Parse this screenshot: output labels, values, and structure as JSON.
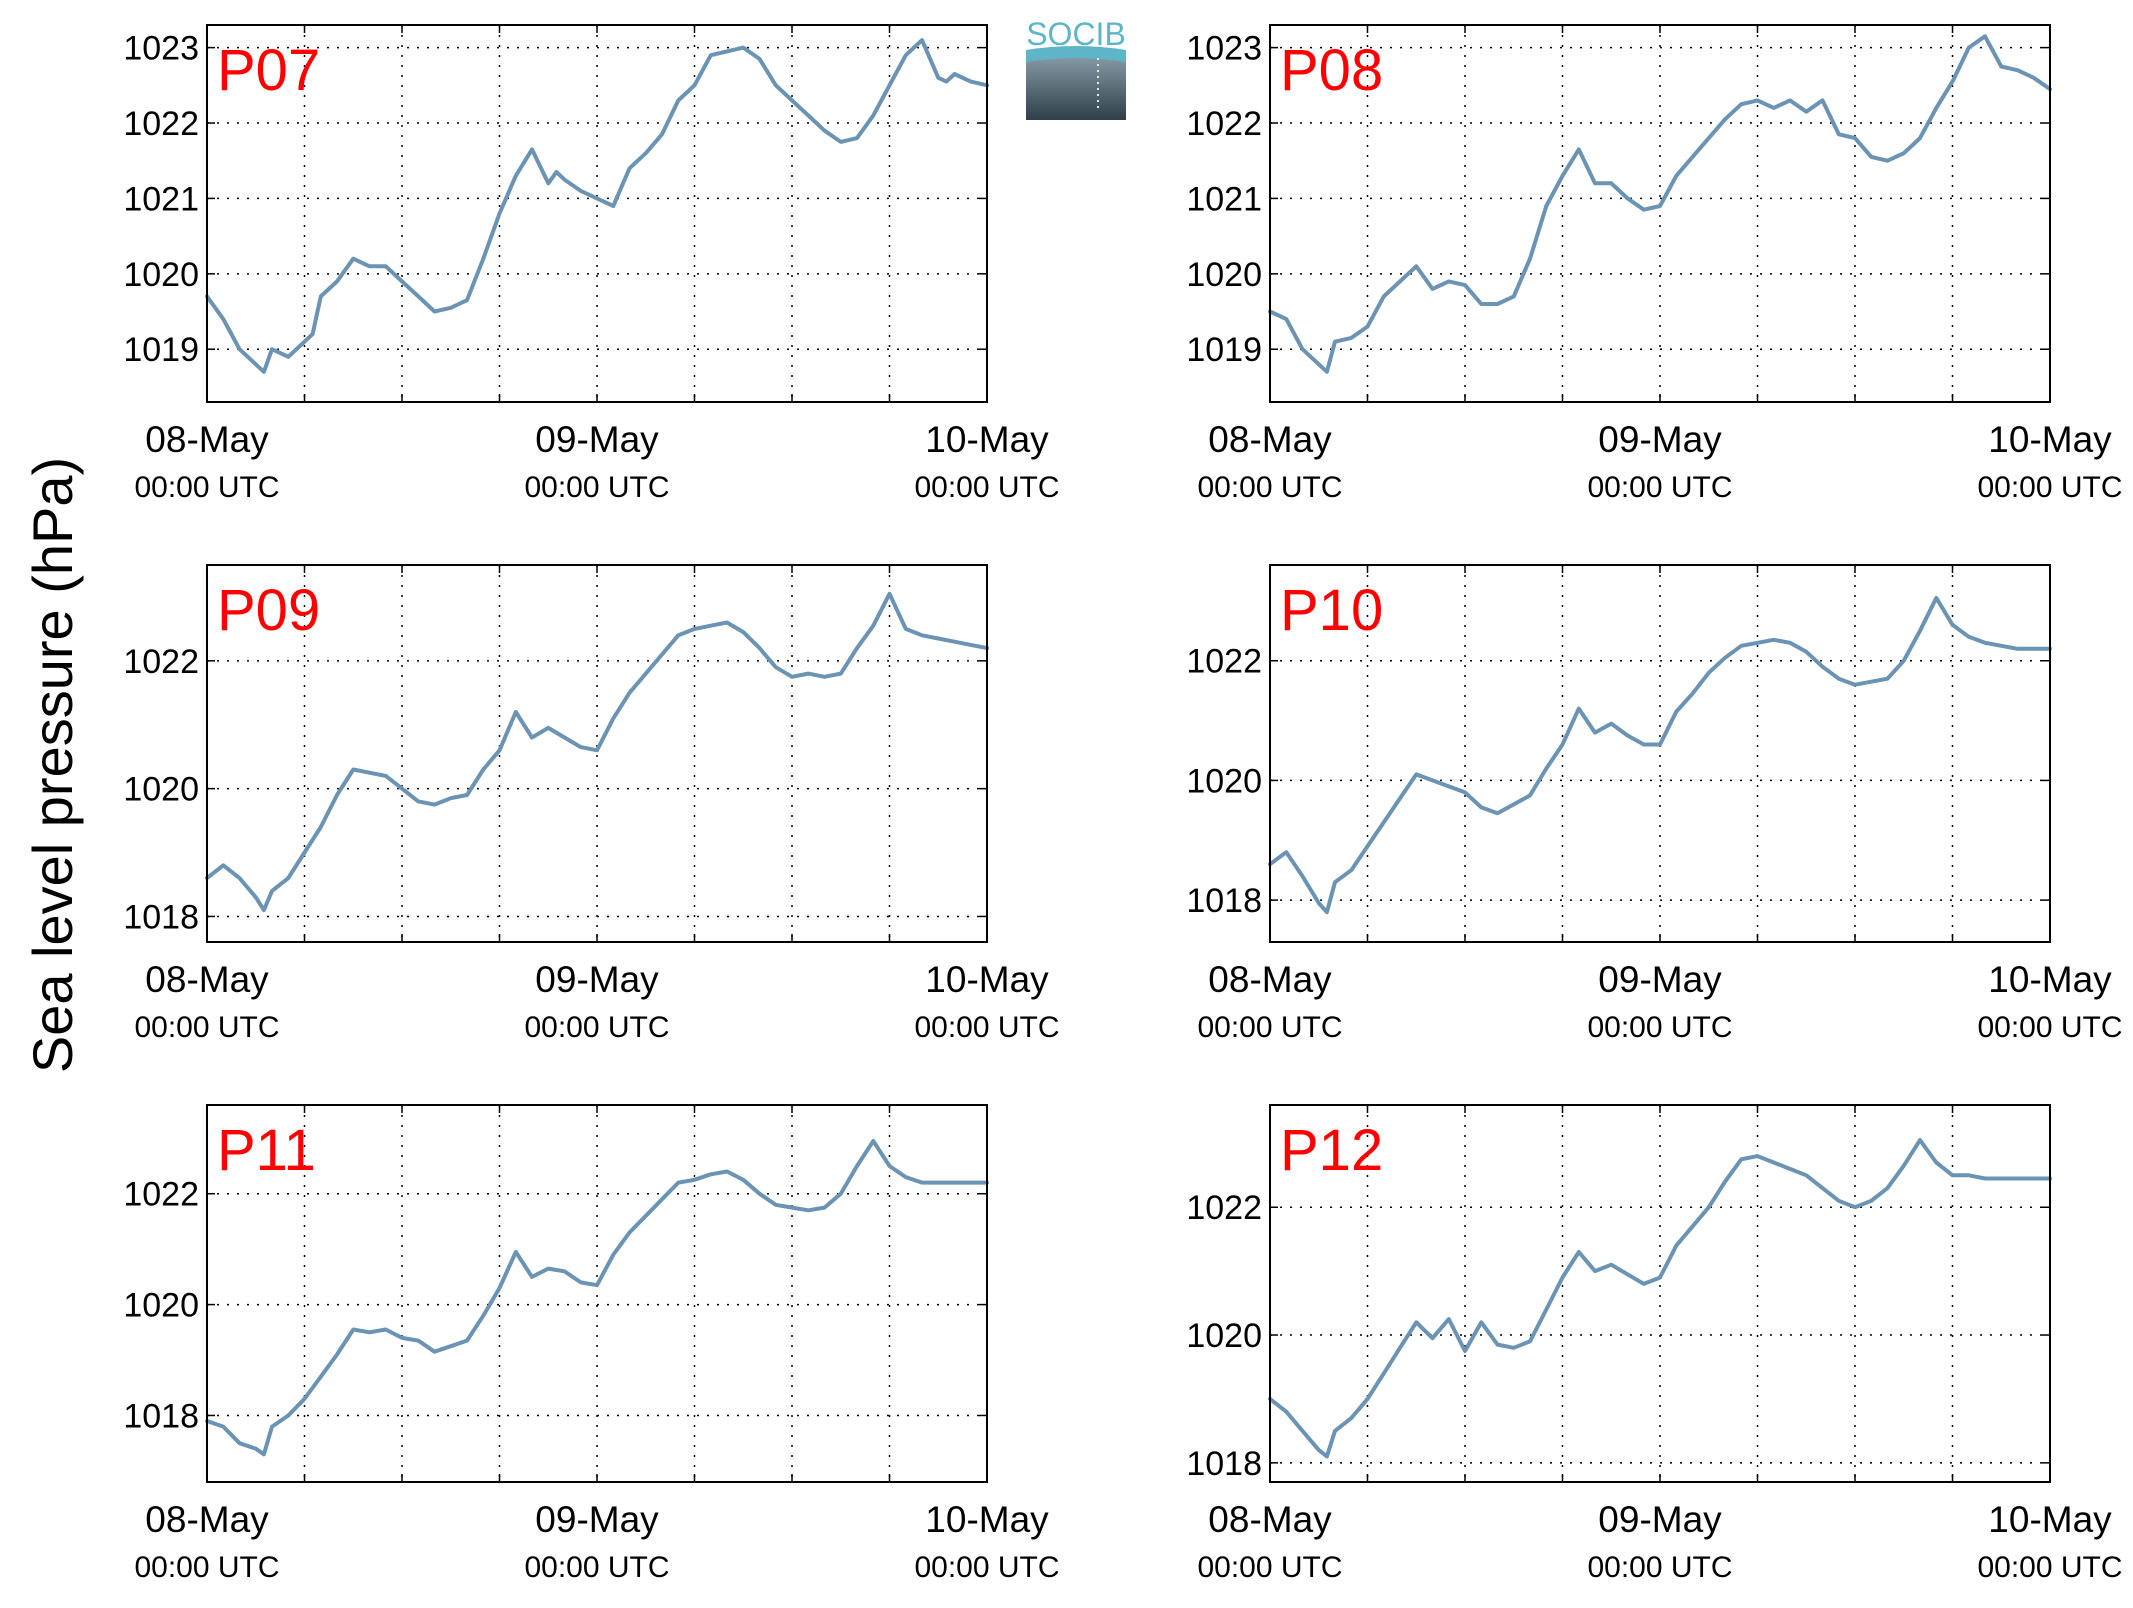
{
  "figure": {
    "ylabel": "Sea level pressure (hPa)",
    "logo_text": "SOCIB",
    "line_color": "#6a93b4",
    "label_color": "#ff0000",
    "x_ticks": [
      {
        "date": "08-May",
        "time": "00:00 UTC"
      },
      {
        "date": "09-May",
        "time": "00:00 UTC"
      },
      {
        "date": "10-May",
        "time": "00:00 UTC"
      }
    ]
  },
  "chart_data": [
    {
      "type": "line",
      "label": "P07",
      "x_unit": "hours since 08-May 00:00 UTC",
      "xlim": [
        0,
        48
      ],
      "ylim": [
        1018.3,
        1023.3
      ],
      "yticks": [
        1019,
        1020,
        1021,
        1022,
        1023
      ],
      "grid": true,
      "x": [
        0,
        1,
        2,
        3,
        3.5,
        4,
        5,
        6,
        6.5,
        7,
        8,
        9,
        10,
        11,
        12,
        13,
        14,
        15,
        16,
        17,
        18,
        19,
        20,
        21,
        21.5,
        22,
        23,
        24,
        25,
        26,
        27,
        28,
        29,
        30,
        31,
        32,
        33,
        34,
        35,
        36,
        37,
        38,
        39,
        40,
        41,
        42,
        43,
        44,
        45,
        45.5,
        46,
        47,
        48
      ],
      "y": [
        1019.7,
        1019.4,
        1019.0,
        1018.8,
        1018.7,
        1019.0,
        1018.9,
        1019.1,
        1019.2,
        1019.7,
        1019.9,
        1020.2,
        1020.1,
        1020.1,
        1019.9,
        1019.7,
        1019.5,
        1019.55,
        1019.65,
        1020.2,
        1020.8,
        1021.3,
        1021.65,
        1021.2,
        1021.35,
        1021.25,
        1021.1,
        1021.0,
        1020.9,
        1021.4,
        1021.6,
        1021.85,
        1022.3,
        1022.5,
        1022.9,
        1022.95,
        1023.0,
        1022.85,
        1022.5,
        1022.3,
        1022.1,
        1021.9,
        1021.75,
        1021.8,
        1022.1,
        1022.5,
        1022.9,
        1023.1,
        1022.6,
        1022.55,
        1022.65,
        1022.55,
        1022.5
      ]
    },
    {
      "type": "line",
      "label": "P08",
      "x_unit": "hours since 08-May 00:00 UTC",
      "xlim": [
        0,
        48
      ],
      "ylim": [
        1018.3,
        1023.3
      ],
      "yticks": [
        1019,
        1020,
        1021,
        1022,
        1023
      ],
      "grid": true,
      "x": [
        0,
        1,
        2,
        3,
        3.5,
        4,
        5,
        6,
        7,
        8,
        9,
        10,
        11,
        12,
        13,
        14,
        15,
        16,
        17,
        18,
        19,
        20,
        21,
        22,
        23,
        24,
        25,
        26,
        27,
        28,
        29,
        30,
        31,
        32,
        33,
        34,
        35,
        36,
        37,
        38,
        39,
        40,
        41,
        42,
        43,
        44,
        45,
        46,
        47,
        48
      ],
      "y": [
        1019.5,
        1019.4,
        1019.0,
        1018.8,
        1018.7,
        1019.1,
        1019.15,
        1019.3,
        1019.7,
        1019.9,
        1020.1,
        1019.8,
        1019.9,
        1019.85,
        1019.6,
        1019.6,
        1019.7,
        1020.2,
        1020.9,
        1021.3,
        1021.65,
        1021.2,
        1021.2,
        1021.0,
        1020.85,
        1020.9,
        1021.3,
        1021.55,
        1021.8,
        1022.05,
        1022.25,
        1022.3,
        1022.2,
        1022.3,
        1022.15,
        1022.3,
        1021.85,
        1021.8,
        1021.55,
        1021.5,
        1021.6,
        1021.8,
        1022.2,
        1022.55,
        1023.0,
        1023.15,
        1022.75,
        1022.7,
        1022.6,
        1022.45
      ]
    },
    {
      "type": "line",
      "label": "P09",
      "x_unit": "hours since 08-May 00:00 UTC",
      "xlim": [
        0,
        48
      ],
      "ylim": [
        1017.6,
        1023.5
      ],
      "yticks": [
        1018,
        1020,
        1022
      ],
      "grid": true,
      "x": [
        0,
        1,
        2,
        3,
        3.5,
        4,
        5,
        6,
        7,
        8,
        9,
        10,
        11,
        12,
        13,
        14,
        15,
        16,
        17,
        18,
        19,
        20,
        21,
        22,
        23,
        24,
        25,
        26,
        27,
        28,
        29,
        30,
        31,
        32,
        33,
        34,
        35,
        36,
        37,
        38,
        39,
        40,
        41,
        42,
        43,
        44,
        45,
        46,
        47,
        48
      ],
      "y": [
        1018.6,
        1018.8,
        1018.6,
        1018.3,
        1018.1,
        1018.4,
        1018.6,
        1019.0,
        1019.4,
        1019.9,
        1020.3,
        1020.25,
        1020.2,
        1020.0,
        1019.8,
        1019.75,
        1019.85,
        1019.9,
        1020.3,
        1020.6,
        1021.2,
        1020.8,
        1020.95,
        1020.8,
        1020.65,
        1020.6,
        1021.1,
        1021.5,
        1021.8,
        1022.1,
        1022.4,
        1022.5,
        1022.55,
        1022.6,
        1022.45,
        1022.2,
        1021.9,
        1021.75,
        1021.8,
        1021.75,
        1021.8,
        1022.2,
        1022.55,
        1023.05,
        1022.5,
        1022.4,
        1022.35,
        1022.3,
        1022.25,
        1022.2
      ]
    },
    {
      "type": "line",
      "label": "P10",
      "x_unit": "hours since 08-May 00:00 UTC",
      "xlim": [
        0,
        48
      ],
      "ylim": [
        1017.3,
        1023.6
      ],
      "yticks": [
        1018,
        1020,
        1022
      ],
      "grid": true,
      "x": [
        0,
        1,
        2,
        3,
        3.5,
        4,
        5,
        6,
        7,
        8,
        9,
        10,
        11,
        12,
        13,
        14,
        15,
        16,
        17,
        18,
        19,
        20,
        21,
        22,
        23,
        24,
        25,
        26,
        27,
        28,
        29,
        30,
        31,
        32,
        33,
        34,
        35,
        36,
        37,
        38,
        39,
        40,
        41,
        42,
        43,
        44,
        45,
        46,
        47,
        48
      ],
      "y": [
        1018.6,
        1018.8,
        1018.4,
        1017.95,
        1017.8,
        1018.3,
        1018.5,
        1018.9,
        1019.3,
        1019.7,
        1020.1,
        1020.0,
        1019.9,
        1019.8,
        1019.55,
        1019.45,
        1019.6,
        1019.75,
        1020.2,
        1020.6,
        1021.2,
        1020.8,
        1020.95,
        1020.75,
        1020.6,
        1020.6,
        1021.15,
        1021.45,
        1021.8,
        1022.05,
        1022.25,
        1022.3,
        1022.35,
        1022.3,
        1022.15,
        1021.9,
        1021.7,
        1021.6,
        1021.65,
        1021.7,
        1022.0,
        1022.5,
        1023.05,
        1022.6,
        1022.4,
        1022.3,
        1022.25,
        1022.2,
        1022.2,
        1022.2
      ]
    },
    {
      "type": "line",
      "label": "P11",
      "x_unit": "hours since 08-May 00:00 UTC",
      "xlim": [
        0,
        48
      ],
      "ylim": [
        1016.8,
        1023.6
      ],
      "yticks": [
        1018,
        1020,
        1022
      ],
      "grid": true,
      "x": [
        0,
        1,
        2,
        3,
        3.5,
        4,
        5,
        6,
        7,
        8,
        9,
        10,
        11,
        12,
        13,
        14,
        15,
        16,
        17,
        18,
        19,
        20,
        21,
        22,
        23,
        24,
        25,
        26,
        27,
        28,
        29,
        30,
        31,
        32,
        33,
        34,
        35,
        36,
        37,
        38,
        39,
        40,
        41,
        42,
        43,
        44,
        45,
        46,
        47,
        48
      ],
      "y": [
        1017.9,
        1017.8,
        1017.5,
        1017.4,
        1017.3,
        1017.8,
        1018.0,
        1018.3,
        1018.7,
        1019.1,
        1019.55,
        1019.5,
        1019.55,
        1019.4,
        1019.35,
        1019.15,
        1019.25,
        1019.35,
        1019.8,
        1020.3,
        1020.95,
        1020.5,
        1020.65,
        1020.6,
        1020.4,
        1020.35,
        1020.9,
        1021.3,
        1021.6,
        1021.9,
        1022.2,
        1022.25,
        1022.35,
        1022.4,
        1022.25,
        1022.0,
        1021.8,
        1021.75,
        1021.7,
        1021.75,
        1022.0,
        1022.5,
        1022.95,
        1022.5,
        1022.3,
        1022.2,
        1022.2,
        1022.2,
        1022.2,
        1022.2
      ]
    },
    {
      "type": "line",
      "label": "P12",
      "x_unit": "hours since 08-May 00:00 UTC",
      "xlim": [
        0,
        48
      ],
      "ylim": [
        1017.7,
        1023.6
      ],
      "yticks": [
        1018,
        1020,
        1022
      ],
      "grid": true,
      "x": [
        0,
        1,
        2,
        3,
        3.5,
        4,
        5,
        6,
        7,
        8,
        9,
        10,
        11,
        12,
        13,
        14,
        15,
        16,
        17,
        18,
        19,
        20,
        21,
        22,
        23,
        24,
        25,
        26,
        27,
        28,
        29,
        30,
        31,
        32,
        33,
        34,
        35,
        36,
        37,
        38,
        39,
        40,
        41,
        42,
        43,
        44,
        45,
        46,
        47,
        48
      ],
      "y": [
        1019.0,
        1018.8,
        1018.5,
        1018.2,
        1018.1,
        1018.5,
        1018.7,
        1019.0,
        1019.4,
        1019.8,
        1020.2,
        1019.95,
        1020.25,
        1019.75,
        1020.2,
        1019.85,
        1019.8,
        1019.9,
        1020.4,
        1020.9,
        1021.3,
        1021.0,
        1021.1,
        1020.95,
        1020.8,
        1020.9,
        1021.4,
        1021.7,
        1022.0,
        1022.4,
        1022.75,
        1022.8,
        1022.7,
        1022.6,
        1022.5,
        1022.3,
        1022.1,
        1022.0,
        1022.1,
        1022.3,
        1022.65,
        1023.05,
        1022.7,
        1022.5,
        1022.5,
        1022.45,
        1022.45,
        1022.45,
        1022.45,
        1022.45
      ]
    }
  ]
}
